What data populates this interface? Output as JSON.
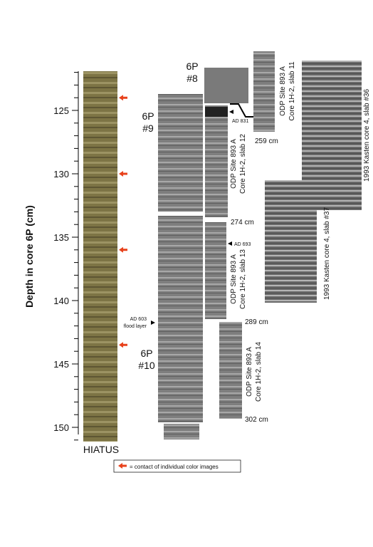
{
  "figure": {
    "axis": {
      "label": "Depth in core 6P (cm)",
      "ylim": [
        121.5,
        151
      ],
      "yticks": [
        125,
        130,
        135,
        140,
        145,
        150
      ]
    },
    "contacts": [
      124,
      130,
      136,
      143.5
    ],
    "hiatus": "HIATUS",
    "legend": "= contact of individual color images",
    "core_labels": [
      [
        "6P",
        "#8"
      ],
      [
        "6P",
        "#9"
      ],
      [
        "6P",
        "#10"
      ]
    ],
    "ages": [
      "AD 831",
      "AD 693",
      [
        "AD 603",
        "flood layer"
      ]
    ],
    "depths": [
      "259 cm",
      "274 cm",
      "289 cm",
      "302 cm"
    ],
    "slabs": [
      [
        "ODP Site 893 A",
        "Core 1H-2, slab 11"
      ],
      [
        "ODP Site 893 A",
        "Core 1H-2, slab 12"
      ],
      [
        "ODP Site 893 A",
        "Core 1H-2, slab 13"
      ],
      [
        "ODP Site 893 A",
        "Core 1H-2, slab 14"
      ]
    ],
    "kasten": [
      "1993 Kasten core 4, slab #36",
      "1993 Kasten core 4, slab #37"
    ]
  }
}
